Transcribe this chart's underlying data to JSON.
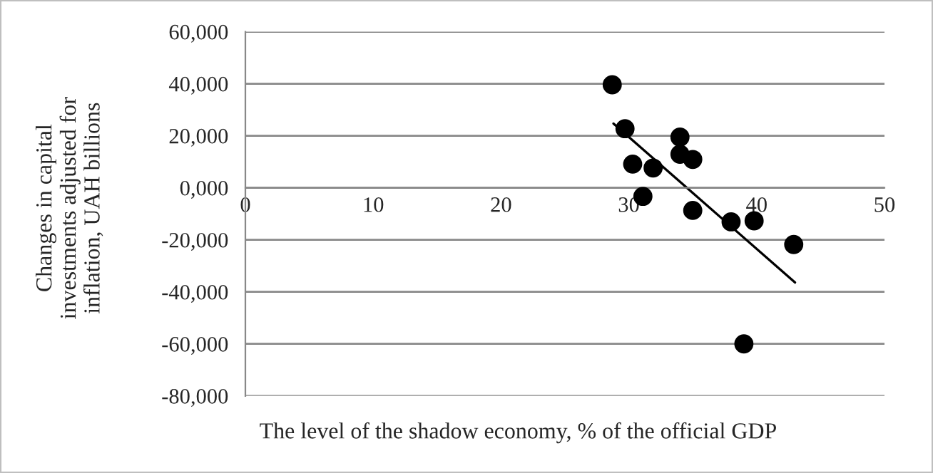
{
  "chart_data": {
    "type": "scatter",
    "xlabel": "The level of the shadow economy, % of the official GDP",
    "ylabel": "Changes in capital\ninvestments adjusted for\ninflation, UAH billions",
    "xlim": [
      0,
      50
    ],
    "xticks": [
      0,
      10,
      20,
      30,
      40,
      50
    ],
    "ylim": [
      -80000,
      60000
    ],
    "yticks": [
      {
        "value": 60000,
        "label": "60,000"
      },
      {
        "value": 40000,
        "label": "40,000"
      },
      {
        "value": 20000,
        "label": "20,000"
      },
      {
        "value": 0,
        "label": "0,000"
      },
      {
        "value": -20000,
        "label": "-20,000"
      },
      {
        "value": -40000,
        "label": "-40,000"
      },
      {
        "value": -60000,
        "label": "-60,000"
      },
      {
        "value": -80000,
        "label": "-80,000"
      }
    ],
    "grid": "y",
    "series": [
      {
        "color": "#000000",
        "marker": "circle",
        "x": [
          28.7,
          29.7,
          30.3,
          31.1,
          31.9,
          34.0,
          34.0,
          35.0,
          35.0,
          38.0,
          39.8,
          42.9,
          39.0
        ],
        "values": [
          39600,
          22700,
          9100,
          -3300,
          7600,
          19500,
          12900,
          10900,
          -8700,
          -13100,
          -12700,
          -21800,
          -60000
        ]
      },
      {
        "type": "line",
        "color": "#000000",
        "x": [
          28.8,
          43.0
        ],
        "values": [
          24700,
          -36400
        ],
        "line_style": "solid"
      }
    ]
  }
}
